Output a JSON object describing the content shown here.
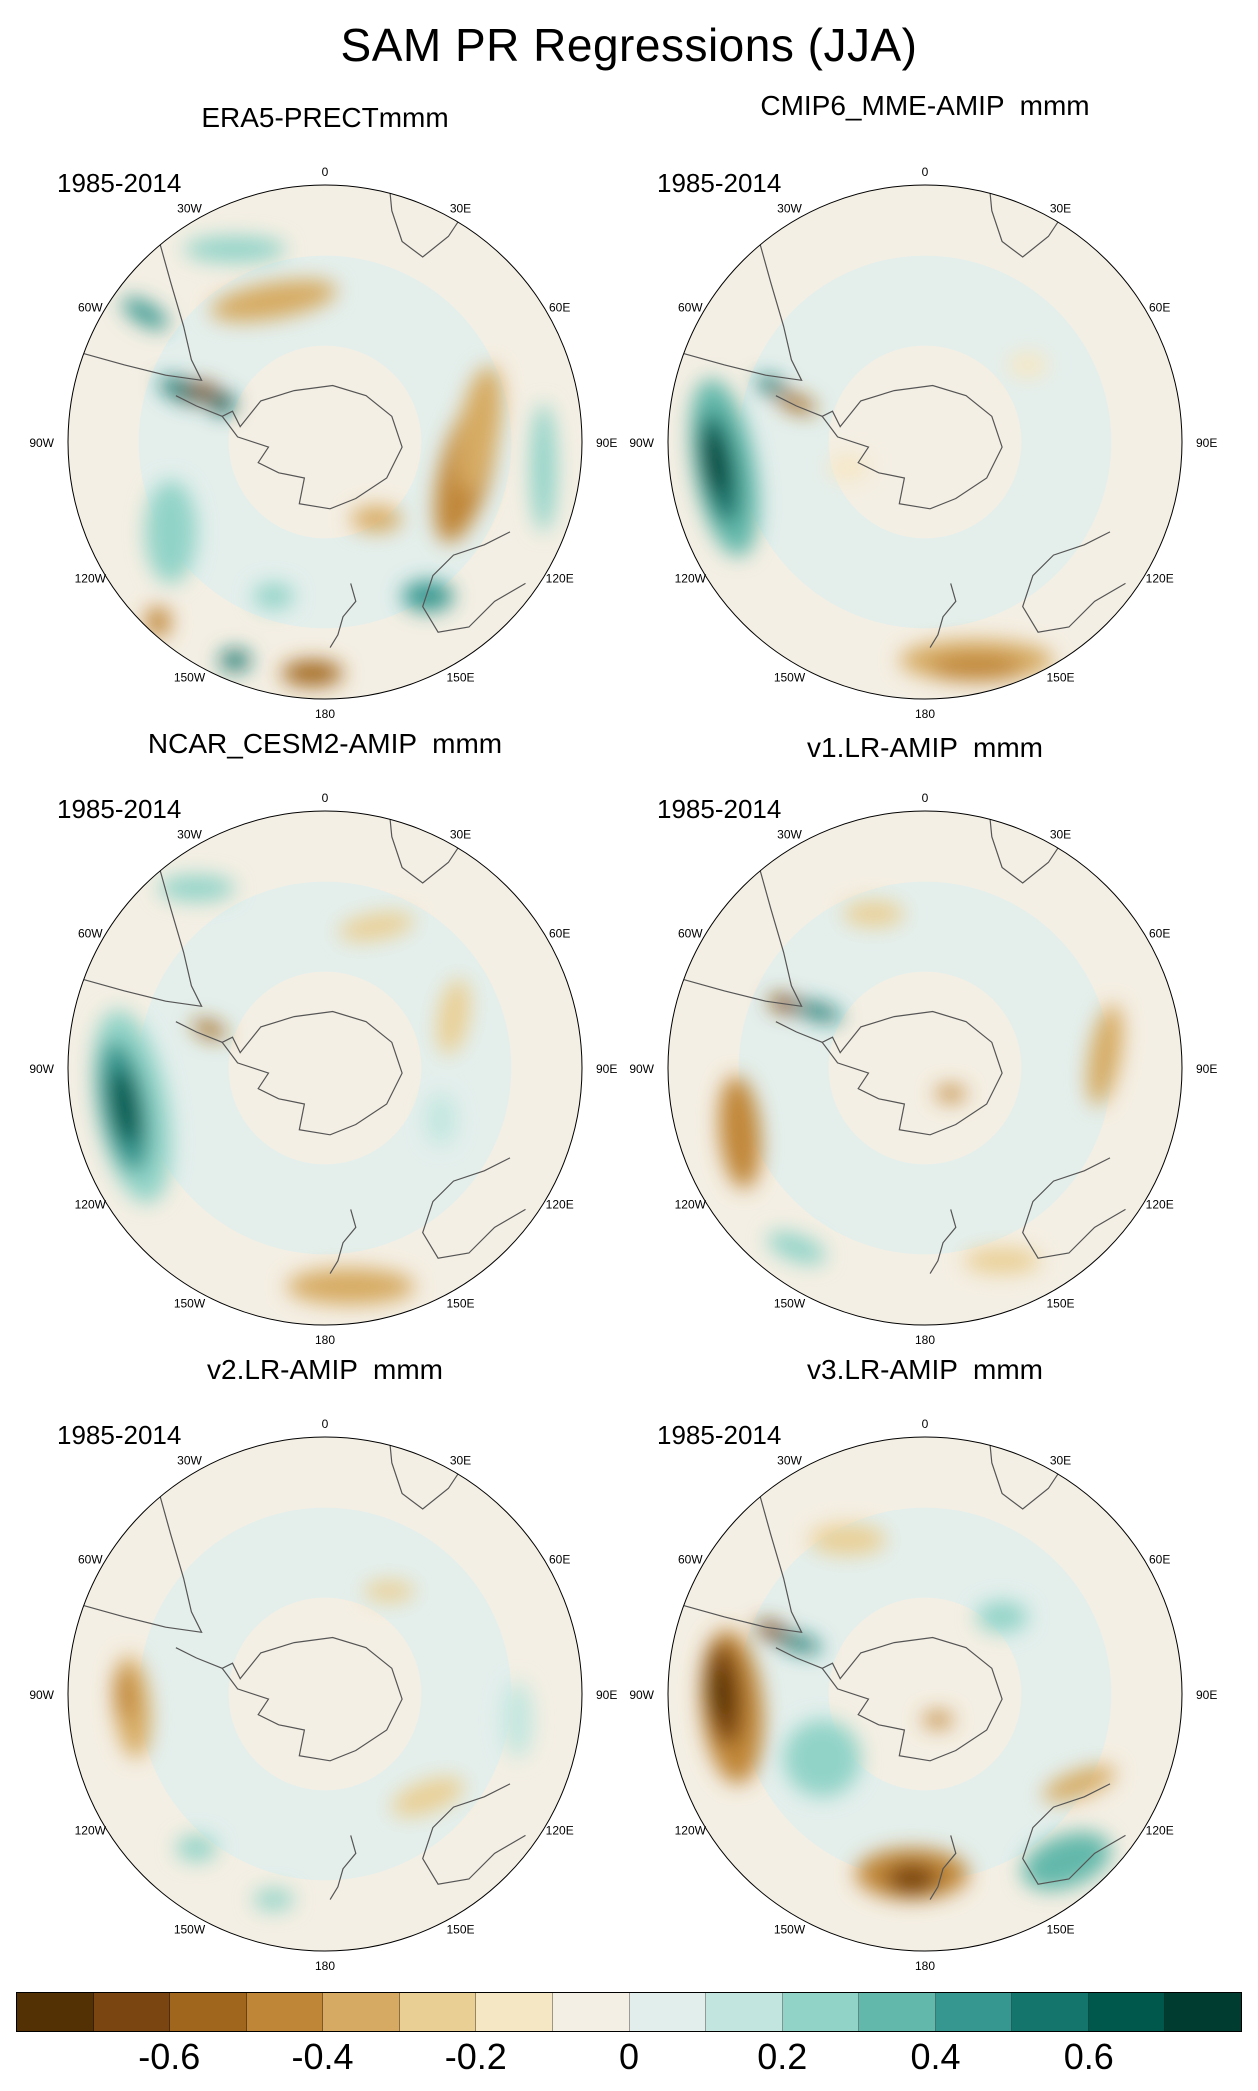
{
  "figure": {
    "title": "SAM PR Regressions (JJA)"
  },
  "longitude_labels": [
    "0",
    "30E",
    "60E",
    "90E",
    "120E",
    "150E",
    "180",
    "150W",
    "120W",
    "90W",
    "60W",
    "30W"
  ],
  "panels": [
    {
      "title": "ERA5-PRECTmmm",
      "period": "1985-2014"
    },
    {
      "title": "CMIP6_MME-AMIP  mmm",
      "period": "1985-2014"
    },
    {
      "title": "NCAR_CESM2-AMIP  mmm",
      "period": "1985-2014"
    },
    {
      "title": "v1.LR-AMIP  mmm",
      "period": "1985-2014"
    },
    {
      "title": "v2.LR-AMIP  mmm",
      "period": "1985-2014"
    },
    {
      "title": "v3.LR-AMIP  mmm",
      "period": "1985-2014"
    }
  ],
  "colorbar": {
    "colors": [
      "#543005",
      "#7a4510",
      "#a0661e",
      "#c08638",
      "#d6aa62",
      "#e9cf94",
      "#f5e6c4",
      "#f4efe4",
      "#e2eeec",
      "#c2e6df",
      "#91d3c7",
      "#62b8aa",
      "#35978f",
      "#13756c",
      "#00574b",
      "#003c30"
    ],
    "tick_labels": [
      "-0.6",
      "-0.4",
      "-0.2",
      "0",
      "0.2",
      "0.4",
      "0.6"
    ]
  }
}
